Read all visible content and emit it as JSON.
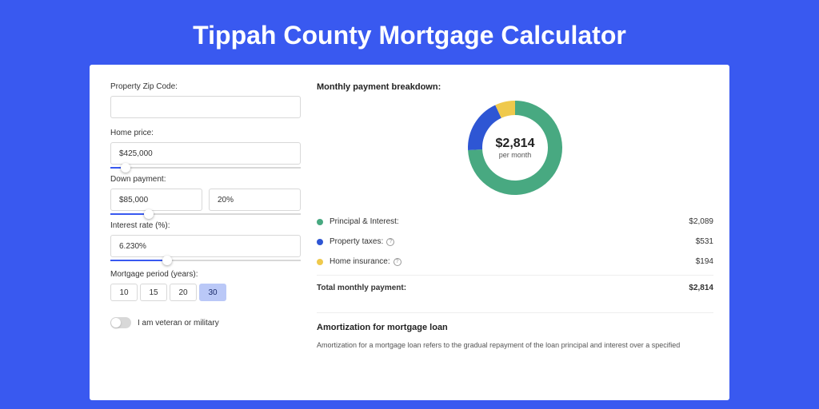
{
  "colors": {
    "page_bg": "#3959f0",
    "card_bg": "#ffffff",
    "text": "#333333",
    "border": "#d8d8d8",
    "accent": "#3959f0",
    "btn_active_bg": "#bac8f7"
  },
  "page_title": "Tippah County Mortgage Calculator",
  "form": {
    "zip": {
      "label": "Property Zip Code:",
      "value": ""
    },
    "home_price": {
      "label": "Home price:",
      "value": "$425,000",
      "slider_pct": 8
    },
    "down_payment": {
      "label": "Down payment:",
      "amount": "$85,000",
      "percent": "20%",
      "slider_pct": 20
    },
    "interest_rate": {
      "label": "Interest rate (%):",
      "value": "6.230%",
      "slider_pct": 30
    },
    "period": {
      "label": "Mortgage period (years):",
      "options": [
        "10",
        "15",
        "20",
        "30"
      ],
      "selected": "30"
    },
    "veteran": {
      "label": "I am veteran or military",
      "checked": false
    }
  },
  "breakdown": {
    "title": "Monthly payment breakdown:",
    "donut": {
      "amount": "$2,814",
      "sub": "per month",
      "slices": [
        {
          "label": "Principal & Interest",
          "value": 2089,
          "color": "#48a981",
          "pct": 74.2
        },
        {
          "label": "Property taxes",
          "value": 531,
          "color": "#2e56d4",
          "pct": 18.9
        },
        {
          "label": "Home insurance",
          "value": 194,
          "color": "#efc94c",
          "pct": 6.9
        }
      ],
      "stroke_width": 18
    },
    "legend": [
      {
        "dot": "#48a981",
        "label": "Principal & Interest:",
        "help": false,
        "value": "$2,089"
      },
      {
        "dot": "#2e56d4",
        "label": "Property taxes:",
        "help": true,
        "value": "$531"
      },
      {
        "dot": "#efc94c",
        "label": "Home insurance:",
        "help": true,
        "value": "$194"
      }
    ],
    "total": {
      "label": "Total monthly payment:",
      "value": "$2,814"
    }
  },
  "amortization": {
    "title": "Amortization for mortgage loan",
    "text": "Amortization for a mortgage loan refers to the gradual repayment of the loan principal and interest over a specified"
  }
}
